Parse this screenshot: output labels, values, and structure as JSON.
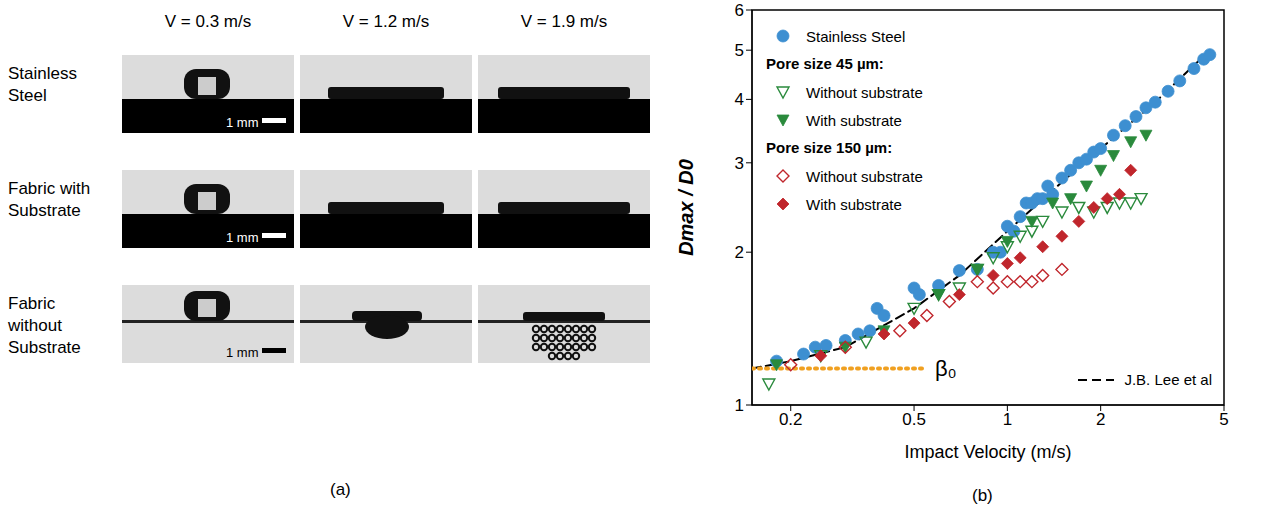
{
  "panel_a": {
    "label": "(a)",
    "columns": [
      "V = 0.3 m/s",
      "V = 1.2 m/s",
      "V = 1.9 m/s"
    ],
    "rows": [
      "Stainless Steel",
      "Fabric with Substrate",
      "Fabric without Substrate"
    ],
    "scale_bar": "1 mm"
  },
  "chart_data": {
    "type": "scatter",
    "label": "(b)",
    "xlabel": "Impact Velocity (m/s)",
    "ylabel": "Dmax / D0",
    "log": true,
    "grid": false,
    "legend": "upper left",
    "xlim": [
      0.15,
      5
    ],
    "xticks": [
      0.2,
      0.5,
      1,
      2,
      5
    ],
    "ylim": [
      1,
      6
    ],
    "yticks": [
      1,
      2,
      3,
      4,
      5,
      6
    ],
    "series": [
      {
        "name": "Stainless Steel",
        "type": "scatter",
        "color": "#3d8fd1",
        "marker": "circle",
        "x": [
          0.18,
          0.22,
          0.24,
          0.26,
          0.3,
          0.33,
          0.36,
          0.38,
          0.4,
          0.5,
          0.52,
          0.6,
          0.7,
          0.8,
          0.9,
          0.95,
          1.0,
          1.05,
          1.1,
          1.15,
          1.2,
          1.25,
          1.3,
          1.35,
          1.4,
          1.5,
          1.6,
          1.7,
          1.8,
          1.9,
          2.0,
          2.2,
          2.4,
          2.6,
          2.8,
          3.0,
          3.3,
          3.6,
          4.0,
          4.3,
          4.5
        ],
        "values": [
          1.22,
          1.26,
          1.3,
          1.31,
          1.34,
          1.38,
          1.4,
          1.55,
          1.5,
          1.7,
          1.65,
          1.72,
          1.84,
          1.85,
          2.0,
          2.0,
          2.25,
          2.2,
          2.35,
          2.5,
          2.5,
          2.55,
          2.55,
          2.7,
          2.6,
          2.8,
          2.9,
          3.0,
          3.05,
          3.15,
          3.2,
          3.4,
          3.55,
          3.7,
          3.85,
          3.95,
          4.15,
          4.35,
          4.6,
          4.8,
          4.9
        ]
      },
      {
        "name": "Without substrate",
        "group": "Pore size 45 µm:",
        "type": "scatter",
        "color": "#2a8a3c",
        "marker": "triangle_down_open",
        "x": [
          0.17,
          0.25,
          0.35,
          0.5,
          0.6,
          0.7,
          0.8,
          0.9,
          1.0,
          1.1,
          1.2,
          1.3,
          1.5,
          1.7,
          1.9,
          2.1,
          2.3,
          2.5,
          2.7
        ],
        "values": [
          1.1,
          1.25,
          1.33,
          1.55,
          1.65,
          1.7,
          1.85,
          1.95,
          2.05,
          2.15,
          2.2,
          2.3,
          2.4,
          2.45,
          2.4,
          2.45,
          2.5,
          2.5,
          2.55
        ]
      },
      {
        "name": "With substrate",
        "group": "Pore size 45 µm:",
        "type": "scatter",
        "color": "#2a8a3c",
        "marker": "triangle_down",
        "x": [
          0.18,
          0.3,
          0.4,
          0.6,
          0.8,
          1.0,
          1.2,
          1.4,
          1.6,
          1.8,
          2.0,
          2.2,
          2.5,
          2.8
        ],
        "values": [
          1.2,
          1.3,
          1.4,
          1.65,
          1.85,
          2.1,
          2.3,
          2.5,
          2.55,
          2.7,
          2.9,
          3.1,
          3.3,
          3.4
        ]
      },
      {
        "name": "Without substrate",
        "group": "Pore size 150 µm:",
        "type": "scatter",
        "color": "#c0262c",
        "marker": "diamond_open",
        "x": [
          0.2,
          0.3,
          0.45,
          0.55,
          0.65,
          0.8,
          0.9,
          1.0,
          1.1,
          1.2,
          1.3,
          1.5
        ],
        "values": [
          1.2,
          1.3,
          1.4,
          1.5,
          1.6,
          1.75,
          1.7,
          1.75,
          1.75,
          1.75,
          1.8,
          1.85
        ]
      },
      {
        "name": "With substrate",
        "group": "Pore size 150 µm:",
        "type": "scatter",
        "color": "#c0262c",
        "marker": "diamond",
        "x": [
          0.25,
          0.4,
          0.5,
          0.7,
          0.9,
          1.0,
          1.1,
          1.3,
          1.5,
          1.7,
          1.9,
          2.1,
          2.3,
          2.5
        ],
        "values": [
          1.25,
          1.38,
          1.45,
          1.65,
          1.8,
          1.9,
          1.95,
          2.05,
          2.15,
          2.3,
          2.45,
          2.55,
          2.6,
          2.9
        ]
      },
      {
        "name": "J.B. Lee et al",
        "type": "line",
        "color": "#000000",
        "line_style": "dashed",
        "x": [
          0.15,
          0.2,
          0.3,
          0.5,
          0.7,
          1.0,
          1.5,
          2.0,
          3.0,
          4.5
        ],
        "values": [
          1.18,
          1.22,
          1.3,
          1.55,
          1.8,
          2.2,
          2.75,
          3.2,
          3.95,
          5.0
        ]
      },
      {
        "name": "β₀",
        "type": "line",
        "color": "#f0a020",
        "line_style": "dotted",
        "x": [
          0.15,
          0.55
        ],
        "values": [
          1.18,
          1.18
        ]
      }
    ]
  }
}
